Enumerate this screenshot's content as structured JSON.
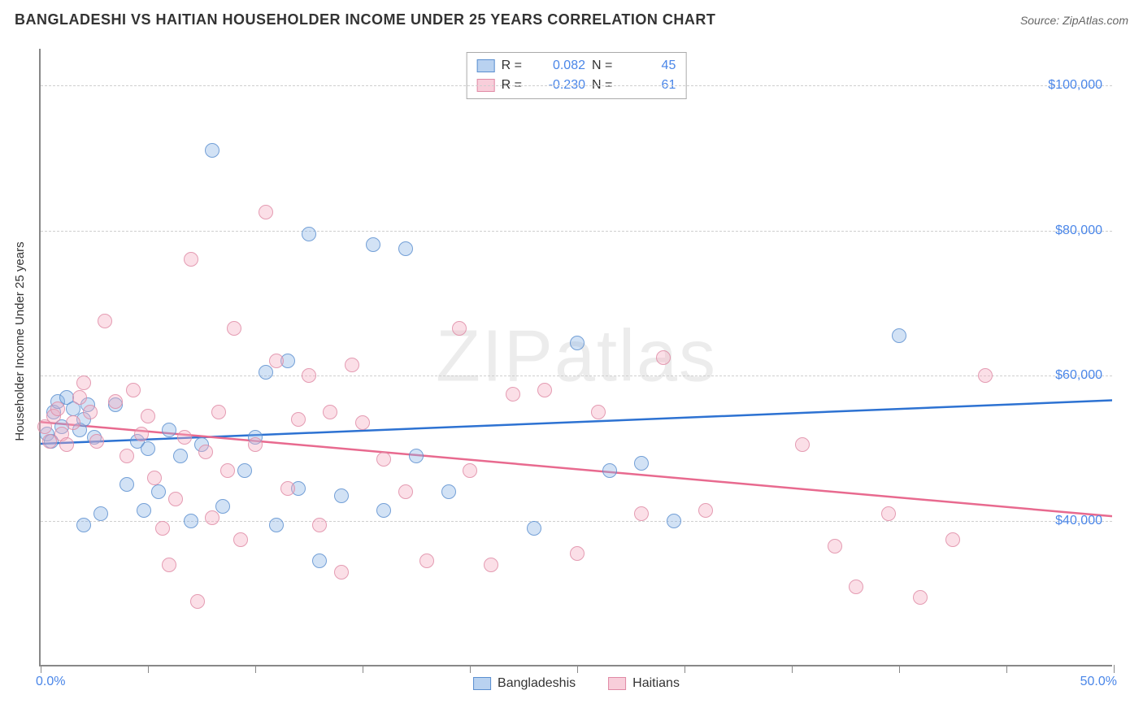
{
  "header": {
    "title": "BANGLADESHI VS HAITIAN HOUSEHOLDER INCOME UNDER 25 YEARS CORRELATION CHART",
    "source": "Source: ZipAtlas.com"
  },
  "watermark": {
    "part1": "ZIP",
    "part2": "atlas"
  },
  "chart": {
    "type": "scatter",
    "background_color": "#ffffff",
    "grid_color": "#cfcfcf",
    "axis_color": "#888888",
    "ylabel": "Householder Income Under 25 years",
    "ylabel_fontsize": 15,
    "xlim": [
      0,
      50
    ],
    "ylim": [
      20000,
      105000
    ],
    "xtick_positions": [
      0,
      5,
      10,
      15,
      20,
      25,
      30,
      35,
      40,
      45,
      50
    ],
    "xtick_label_min": "0.0%",
    "xtick_label_max": "50.0%",
    "yticks": [
      {
        "value": 40000,
        "label": "$40,000"
      },
      {
        "value": 60000,
        "label": "$60,000"
      },
      {
        "value": 80000,
        "label": "$80,000"
      },
      {
        "value": 100000,
        "label": "$100,000"
      }
    ],
    "tick_label_color": "#4a86e8",
    "tick_label_fontsize": 16,
    "point_radius": 9,
    "series": [
      {
        "name": "Bangladeshis",
        "color_fill": "rgba(138,180,230,0.45)",
        "color_stroke": "#5b8fd0",
        "trend_color": "#2d72d2",
        "trend_width": 2.5,
        "R": "0.082",
        "N": "45",
        "trend": {
          "x1": 0,
          "y1": 50500,
          "x2": 50,
          "y2": 56500
        },
        "points": [
          [
            0.3,
            52000
          ],
          [
            0.5,
            51000
          ],
          [
            0.6,
            55000
          ],
          [
            0.8,
            56500
          ],
          [
            1.0,
            53000
          ],
          [
            1.2,
            57000
          ],
          [
            1.5,
            55500
          ],
          [
            1.8,
            52500
          ],
          [
            2.0,
            54000
          ],
          [
            2.2,
            56000
          ],
          [
            2.5,
            51500
          ],
          [
            2.8,
            41000
          ],
          [
            2.0,
            39500
          ],
          [
            3.5,
            56000
          ],
          [
            4.0,
            45000
          ],
          [
            4.5,
            51000
          ],
          [
            4.8,
            41500
          ],
          [
            5.0,
            50000
          ],
          [
            5.5,
            44000
          ],
          [
            6.0,
            52500
          ],
          [
            6.5,
            49000
          ],
          [
            7.0,
            40000
          ],
          [
            7.5,
            50500
          ],
          [
            8.0,
            91000
          ],
          [
            8.5,
            42000
          ],
          [
            9.5,
            47000
          ],
          [
            10.0,
            51500
          ],
          [
            10.5,
            60500
          ],
          [
            11.0,
            39500
          ],
          [
            11.5,
            62000
          ],
          [
            12.0,
            44500
          ],
          [
            12.5,
            79500
          ],
          [
            13.0,
            34500
          ],
          [
            14.0,
            43500
          ],
          [
            15.5,
            78000
          ],
          [
            16.0,
            41500
          ],
          [
            17.0,
            77500
          ],
          [
            17.5,
            49000
          ],
          [
            19.0,
            44000
          ],
          [
            23.0,
            39000
          ],
          [
            25.0,
            64500
          ],
          [
            26.5,
            47000
          ],
          [
            28.0,
            48000
          ],
          [
            29.5,
            40000
          ],
          [
            40.0,
            65500
          ]
        ]
      },
      {
        "name": "Haitians",
        "color_fill": "rgba(244,174,193,0.45)",
        "color_stroke": "#e08aa5",
        "trend_color": "#e86a8f",
        "trend_width": 2.5,
        "R": "-0.230",
        "N": "61",
        "trend": {
          "x1": 0,
          "y1": 53500,
          "x2": 50,
          "y2": 40500
        },
        "points": [
          [
            0.2,
            53000
          ],
          [
            0.4,
            51000
          ],
          [
            0.6,
            54500
          ],
          [
            0.8,
            55500
          ],
          [
            1.0,
            52000
          ],
          [
            1.2,
            50500
          ],
          [
            1.5,
            53500
          ],
          [
            1.8,
            57000
          ],
          [
            2.0,
            59000
          ],
          [
            2.3,
            55000
          ],
          [
            2.6,
            51000
          ],
          [
            3.0,
            67500
          ],
          [
            3.5,
            56500
          ],
          [
            4.0,
            49000
          ],
          [
            4.3,
            58000
          ],
          [
            4.7,
            52000
          ],
          [
            5.0,
            54500
          ],
          [
            5.3,
            46000
          ],
          [
            5.7,
            39000
          ],
          [
            6.0,
            34000
          ],
          [
            6.3,
            43000
          ],
          [
            6.7,
            51500
          ],
          [
            7.0,
            76000
          ],
          [
            7.3,
            29000
          ],
          [
            7.7,
            49500
          ],
          [
            8.0,
            40500
          ],
          [
            8.3,
            55000
          ],
          [
            8.7,
            47000
          ],
          [
            9.0,
            66500
          ],
          [
            9.3,
            37500
          ],
          [
            10.0,
            50500
          ],
          [
            10.5,
            82500
          ],
          [
            11.0,
            62000
          ],
          [
            11.5,
            44500
          ],
          [
            12.0,
            54000
          ],
          [
            12.5,
            60000
          ],
          [
            13.0,
            39500
          ],
          [
            13.5,
            55000
          ],
          [
            14.0,
            33000
          ],
          [
            14.5,
            61500
          ],
          [
            15.0,
            53500
          ],
          [
            16.0,
            48500
          ],
          [
            17.0,
            44000
          ],
          [
            18.0,
            34500
          ],
          [
            19.5,
            66500
          ],
          [
            20.0,
            47000
          ],
          [
            21.0,
            34000
          ],
          [
            22.0,
            57500
          ],
          [
            23.5,
            58000
          ],
          [
            25.0,
            35500
          ],
          [
            26.0,
            55000
          ],
          [
            28.0,
            41000
          ],
          [
            29.0,
            62500
          ],
          [
            31.0,
            41500
          ],
          [
            35.5,
            50500
          ],
          [
            37.0,
            36500
          ],
          [
            38.0,
            31000
          ],
          [
            39.5,
            41000
          ],
          [
            41.0,
            29500
          ],
          [
            42.5,
            37500
          ],
          [
            44.0,
            60000
          ]
        ]
      }
    ],
    "stats_box": {
      "R_label": "R =",
      "N_label": "N ="
    },
    "bottom_legend": [
      "Bangladeshis",
      "Haitians"
    ]
  }
}
